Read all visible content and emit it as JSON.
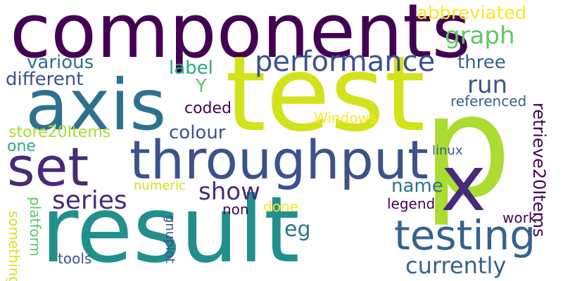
{
  "words": {
    "components": "components",
    "test": "test",
    "p": "p",
    "axis": "axis",
    "result": "result",
    "set": "set",
    "throughput": "throughput",
    "x": "x",
    "testing": "testing",
    "performance": "performance",
    "graph": "graph",
    "abbreviated": "abbreviated",
    "various": "various",
    "three": "three",
    "different": "different",
    "label": "label",
    "run": "run",
    "y": "Y",
    "coded": "coded",
    "referenced": "referenced",
    "retrieve20Items": "retrieve20Items",
    "store20Items": "store20Items",
    "colour": "colour",
    "windows": "Windows",
    "one": "one",
    "linux": "linux",
    "series": "series",
    "show": "show",
    "name": "name",
    "numeric": "numeric",
    "eg": "eg",
    "legend": "legend",
    "non": "non",
    "done": "done",
    "currently": "currently",
    "something": "something",
    "platform": "platform",
    "gnuplot": "gnuplot",
    "work": "work",
    "tools": "tools"
  },
  "colors": {
    "dark_purple": "#440154",
    "purple": "#472a7a",
    "indigo": "#3b528b",
    "blue": "#33638d",
    "teal_blue": "#2c728e",
    "teal": "#21908d",
    "green_teal": "#27ad81",
    "green": "#5cc863",
    "light_green": "#aadc32",
    "yellow_green": "#d2e21b",
    "yellow": "#fde725"
  }
}
